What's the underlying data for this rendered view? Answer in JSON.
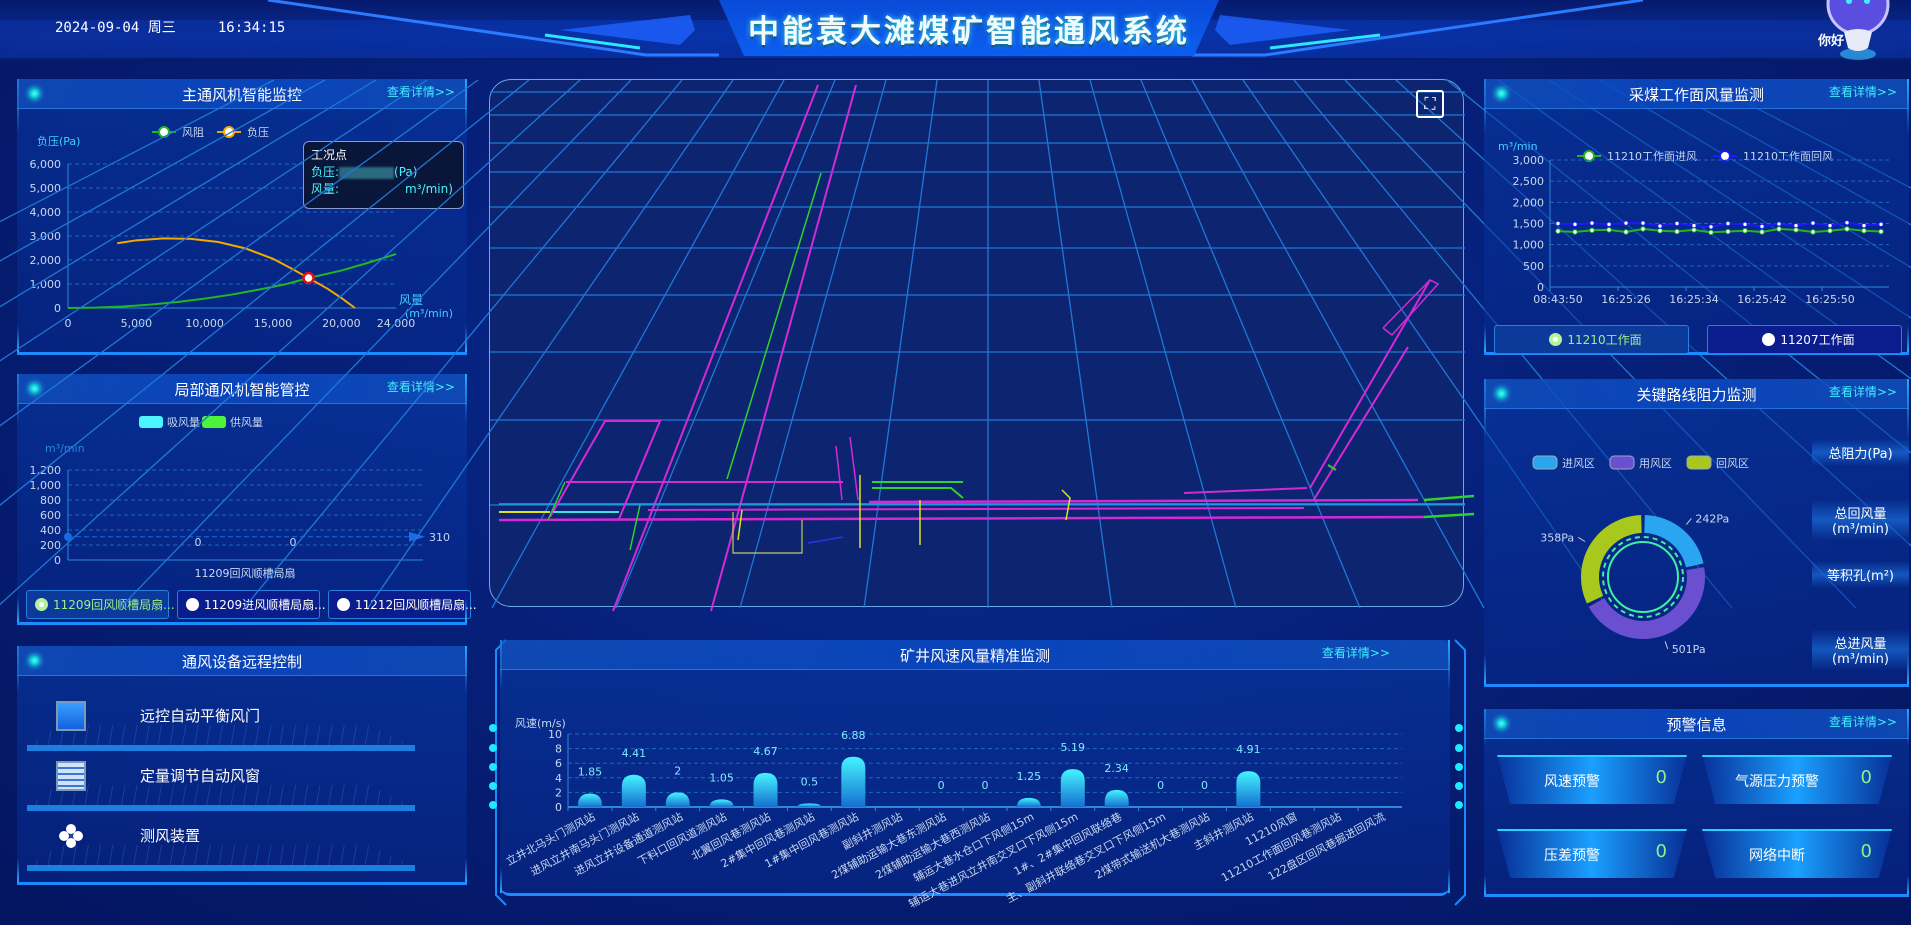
{
  "header": {
    "title": "中能袁大滩煤矿智能通风系统",
    "date": "2024-09-04 周三",
    "time": "16:34:15",
    "assistant_greeting": "你好"
  },
  "common": {
    "more_link": "查看详情>>"
  },
  "main_fan": {
    "title": "主通风机智能监控",
    "chart_data": {
      "type": "line",
      "ylabel": "负压(Pa)",
      "xlabel": "风量",
      "xlabel_unit": "(m³/min)",
      "xlim": [
        0,
        24000
      ],
      "ylim": [
        0,
        6000
      ],
      "x_ticks": [
        "0",
        "5,000",
        "10,000",
        "15,000",
        "20,000",
        "24,000"
      ],
      "y_ticks": [
        "0",
        "1,000",
        "2,000",
        "3,000",
        "4,000",
        "5,000",
        "6,000"
      ],
      "legend": "top-center",
      "series": [
        {
          "name": "风阻",
          "color": "#1fb81f",
          "points": [
            [
              0,
              0
            ],
            [
              2000,
              15
            ],
            [
              4000,
              60
            ],
            [
              6000,
              140
            ],
            [
              8000,
              250
            ],
            [
              10000,
              390
            ],
            [
              12000,
              560
            ],
            [
              14000,
              770
            ],
            [
              16000,
              1000
            ],
            [
              17600,
              1250
            ],
            [
              20000,
              1560
            ],
            [
              22000,
              1890
            ],
            [
              24000,
              2250
            ]
          ]
        },
        {
          "name": "负压",
          "color": "#f2a900",
          "points": [
            [
              3600,
              2700
            ],
            [
              5000,
              2820
            ],
            [
              7000,
              2900
            ],
            [
              9000,
              2880
            ],
            [
              11000,
              2750
            ],
            [
              13000,
              2480
            ],
            [
              15000,
              2050
            ],
            [
              16500,
              1600
            ],
            [
              17600,
              1250
            ],
            [
              19000,
              800
            ],
            [
              20000,
              420
            ],
            [
              21000,
              0
            ]
          ]
        }
      ],
      "operating_point": [
        17600,
        1250
      ]
    },
    "tooltip": {
      "title": "工况点",
      "pressure_label": "负压:",
      "pressure_unit": "(Pa)",
      "flow_label": "风量:",
      "flow_unit": "m³/min)"
    }
  },
  "local_fan": {
    "title": "局部通风机智能管控",
    "chart_data": {
      "type": "bar",
      "ylabel": "m³/min",
      "ylim": [
        0,
        1200
      ],
      "y_ticks": [
        "0",
        "200",
        "400",
        "600",
        "800",
        "1,000",
        "1,200"
      ],
      "categories": [
        "11209回风顺槽局扇"
      ],
      "series": [
        {
          "name": "吸风量",
          "color": "#4df3ff",
          "values": [
            0
          ]
        },
        {
          "name": "供风量",
          "color": "#4cf53a",
          "values": [
            0
          ]
        }
      ],
      "mark_line": {
        "value": 310,
        "label": "310"
      },
      "legend": "top-center"
    },
    "buttons": [
      {
        "label": "11209回风顺槽局扇...",
        "active": true
      },
      {
        "label": "11209进风顺槽局扇...",
        "active": false
      },
      {
        "label": "11212回风顺槽局扇...",
        "active": false
      }
    ]
  },
  "remote_control": {
    "title": "通风设备远程控制",
    "items": [
      {
        "label": "远控自动平衡风门",
        "icon": "door-icon"
      },
      {
        "label": "定量调节自动风窗",
        "icon": "window-icon"
      },
      {
        "label": "测风装置",
        "icon": "fan-icon"
      }
    ]
  },
  "map": {
    "fullscreen_icon": "fullscreen-icon"
  },
  "wind_speed": {
    "title": "矿井风速风量精准监测",
    "chart_data": {
      "type": "bar",
      "ylabel": "风速(m/s)",
      "ylim": [
        0,
        10
      ],
      "y_ticks": [
        "0",
        "2",
        "4",
        "6",
        "8",
        "10"
      ],
      "categories": [
        "立井北马头门测风站",
        "进风立井南马头门测风站",
        "进风立井设备通道测风站",
        "下料口回风道测风站",
        "北翼回风巷测风站",
        "2#集中回风巷测风站",
        "1#集中回风巷测风站",
        "副斜井测风站",
        "2煤辅助运输大巷东测风站",
        "2煤辅助运输大巷西测风站",
        "辅运大巷水仓口下风侧15m",
        "辅运大巷进风立井南交叉口下风侧15m",
        "1#、2#集中回风联络巷",
        "主、副斜井联络巷交叉口下风侧15m",
        "2煤带式输送机大巷测风站",
        "主斜井测风站",
        "11210风窗",
        "11210工作面回风巷测风站",
        "122盘区回风巷掘进回风流"
      ],
      "values": [
        1.85,
        4.41,
        2,
        1.05,
        4.67,
        0.5,
        6.88,
        null,
        0,
        0,
        1.25,
        5.19,
        2.34,
        0,
        0,
        4.91,
        null,
        null,
        null
      ],
      "grid": true
    }
  },
  "coal_face": {
    "title": "采煤工作面风量监测",
    "chart_data": {
      "type": "line",
      "ylabel": "m³/min",
      "ylim": [
        0,
        3000
      ],
      "y_ticks": [
        "0",
        "500",
        "1,000",
        "1,500",
        "2,000",
        "2,500",
        "3,000"
      ],
      "x_labels": [
        "08:43:50",
        "16:25:26",
        "16:25:34",
        "16:25:42",
        "16:25:50"
      ],
      "label_every": 4,
      "legend": "top-center",
      "series": [
        {
          "name": "11210工作面进风",
          "color": "#1fb81f",
          "values": [
            1320,
            1300,
            1340,
            1350,
            1300,
            1370,
            1330,
            1310,
            1350,
            1290,
            1310,
            1330,
            1300,
            1370,
            1350,
            1300,
            1330,
            1370,
            1330,
            1310
          ]
        },
        {
          "name": "11210工作面回风",
          "color": "#1a1aff",
          "values": [
            1500,
            1480,
            1510,
            1480,
            1510,
            1510,
            1440,
            1500,
            1450,
            1420,
            1500,
            1480,
            1430,
            1490,
            1450,
            1510,
            1450,
            1520,
            1450,
            1480
          ]
        }
      ]
    },
    "buttons": [
      {
        "label": "11210工作面",
        "active": true
      },
      {
        "label": "11207工作面",
        "active": false
      }
    ]
  },
  "resistance": {
    "title": "关键路线阻力监测",
    "chart_data": {
      "type": "pie",
      "donut": true,
      "legend": "top-left",
      "slices": [
        {
          "name": "进风区",
          "value": 242,
          "label": "242Pa",
          "color": "#2aa6f0"
        },
        {
          "name": "用风区",
          "value": 501,
          "label": "501Pa",
          "color": "#6a4fd0"
        },
        {
          "name": "回风区",
          "value": 358,
          "label": "358Pa",
          "color": "#a8c81e"
        }
      ]
    },
    "metrics": [
      {
        "label": "总阻力(Pa)"
      },
      {
        "label": "总回风量",
        "unit": "(m³/min)"
      },
      {
        "label": "等积孔(m²)"
      },
      {
        "label": "总进风量",
        "unit": "(m³/min)"
      }
    ]
  },
  "warnings": {
    "title": "预警信息",
    "items": [
      {
        "label": "风速预警",
        "value": "0"
      },
      {
        "label": "气源压力预警",
        "value": "0"
      },
      {
        "label": "压差预警",
        "value": "0"
      },
      {
        "label": "网络中断",
        "value": "0"
      }
    ]
  }
}
